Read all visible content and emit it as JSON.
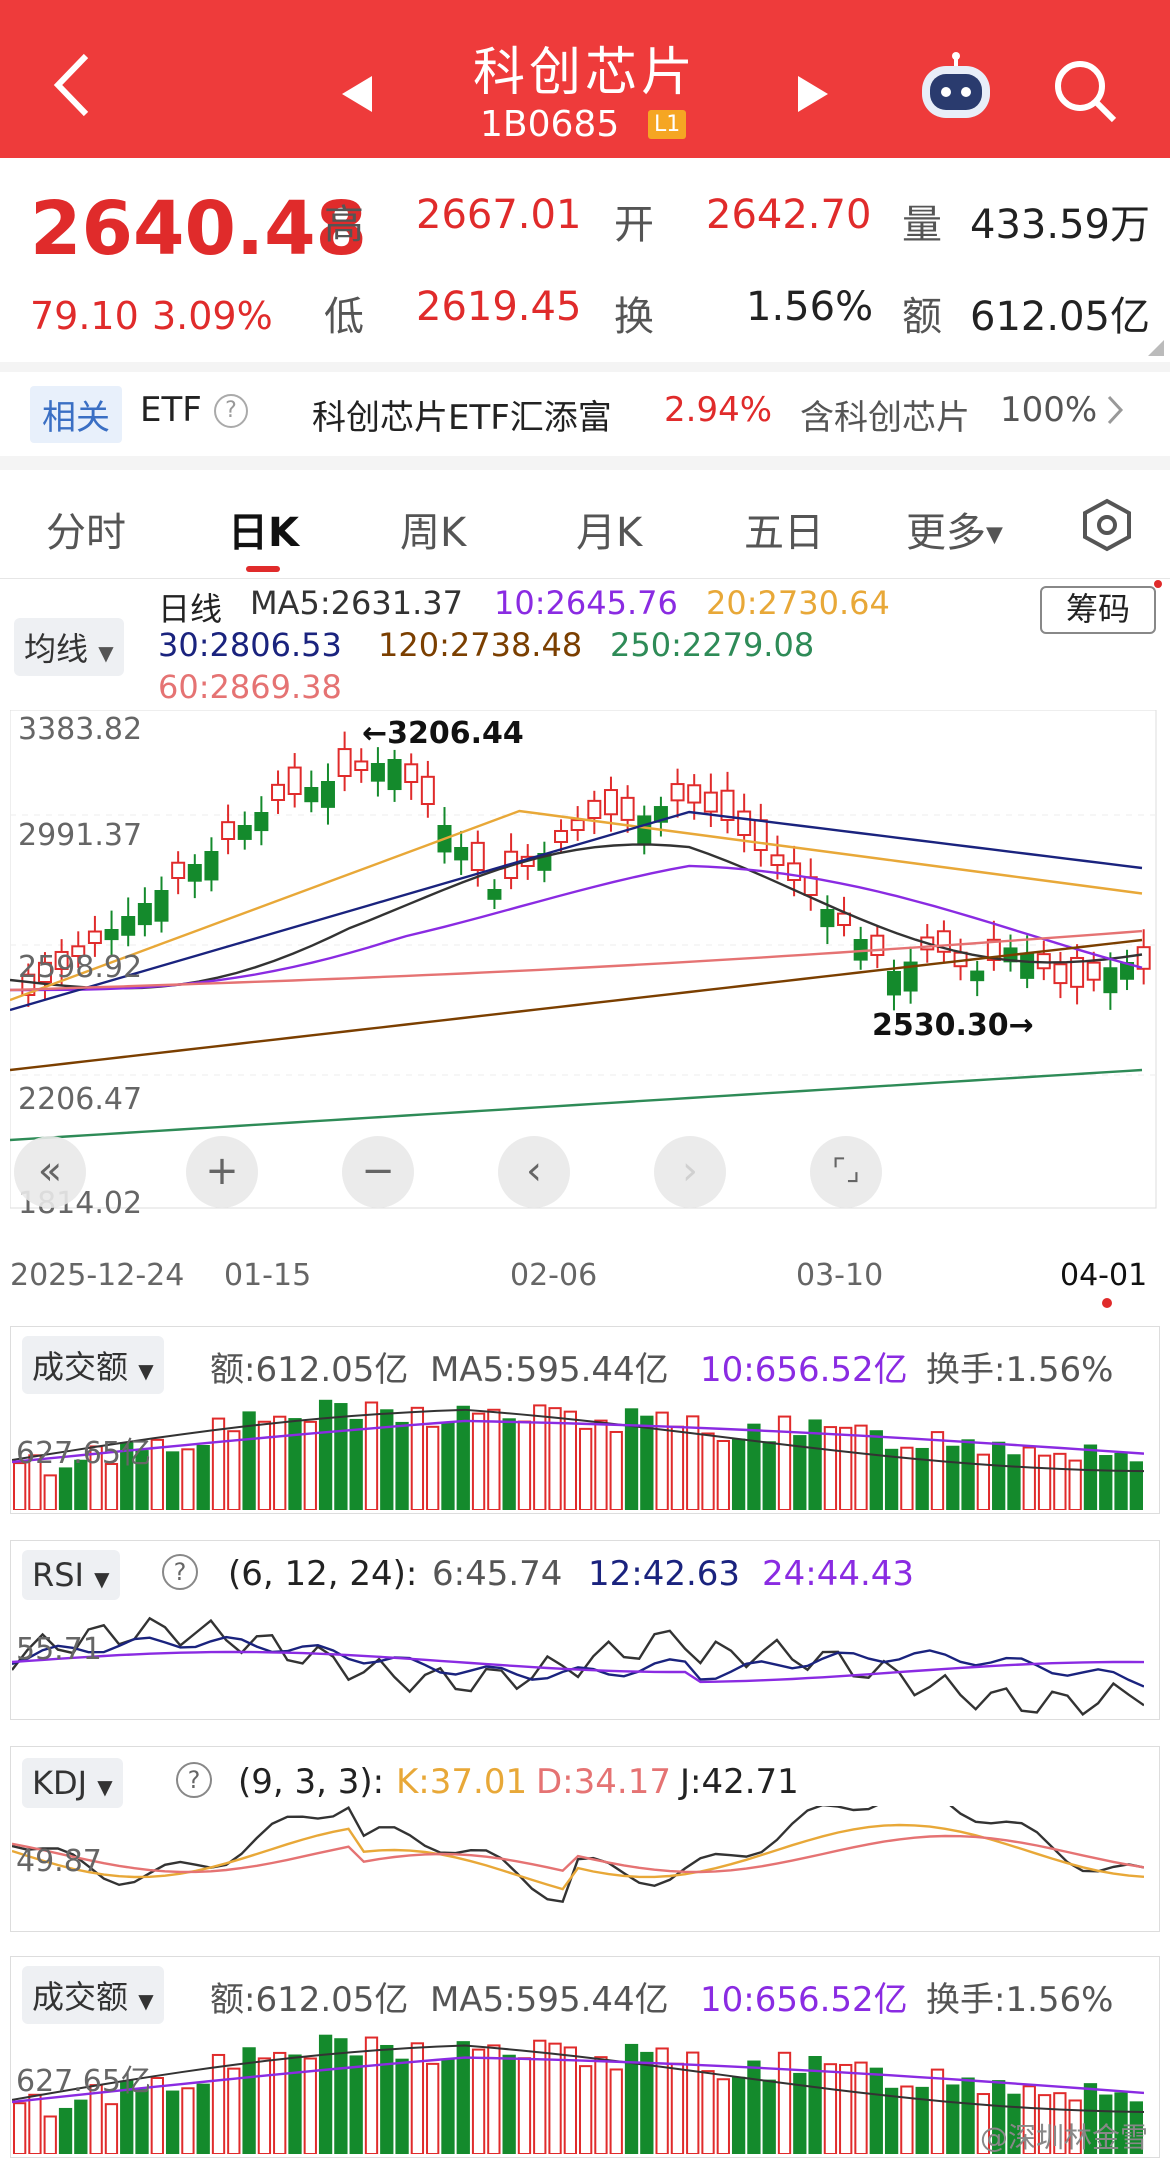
{
  "header": {
    "title": "科创芯片",
    "code": "1B0685",
    "level": "L1"
  },
  "quote": {
    "price": "2640.48",
    "change": "79.10",
    "pct": "3.09%",
    "high_label": "高",
    "high": "2667.01",
    "open_label": "开",
    "open": "2642.70",
    "vol_label": "量",
    "vol": "433.59万",
    "low_label": "低",
    "low": "2619.45",
    "turn_label": "换",
    "turn": "1.56%",
    "amt_label": "额",
    "amt": "612.05亿"
  },
  "etf": {
    "tag": "相关",
    "etf": "ETF",
    "name": "科创芯片ETF汇添富",
    "name_pct": "2.94%",
    "contains": "含科创芯片",
    "contains_pct": "100%"
  },
  "tabs": [
    "分时",
    "日K",
    "周K",
    "月K",
    "五日",
    "更多"
  ],
  "kline": {
    "mode": "均线",
    "label": "日线",
    "ma5": "MA5:2631.37",
    "ma10": "10:2645.76",
    "ma20": "20:2730.64",
    "ma30": "30:2806.53",
    "ma120": "120:2738.48",
    "ma250": "250:2279.08",
    "ma60": "60:2869.38",
    "chip": "筹码",
    "y_labels": [
      "3383.82",
      "2991.37",
      "2598.92",
      "2206.47",
      "1814.02"
    ],
    "x_labels": [
      "2025-12-24",
      "01-15",
      "02-06",
      "03-10",
      "04-01"
    ],
    "high_mark": "←3206.44",
    "low_mark": "2530.30→",
    "colors": {
      "up": "#e02b2b",
      "down": "#148a2c",
      "ma5": "#333333",
      "ma10": "#8a2be2",
      "ma20": "#e8a838",
      "ma30": "#1a237e",
      "ma60": "#e57373",
      "ma120": "#7b3f00",
      "ma250": "#2e8b57"
    }
  },
  "amount_panel": {
    "mode": "成交额",
    "amt": "额:612.05亿",
    "ma5": "MA5:595.44亿",
    "ma10": "10:656.52亿",
    "turnover": "换手:1.56%",
    "ylabel": "627.65亿"
  },
  "rsi": {
    "mode": "RSI",
    "params": "(6, 12, 24):",
    "r6": "6:45.74",
    "r12": "12:42.63",
    "r24": "24:44.43",
    "ylabel": "55.71"
  },
  "kdj": {
    "mode": "KDJ",
    "params": "(9, 3, 3):",
    "k": "K:37.01",
    "d": "D:34.17",
    "j": "J:42.71",
    "ylabel": "49.87"
  },
  "amount_panel2": {
    "mode": "成交额",
    "amt": "额:612.05亿",
    "ma5": "MA5:595.44亿",
    "ma10": "10:656.52亿",
    "turnover": "换手:1.56%",
    "ylabel": "627.65亿"
  },
  "watermark": "@深圳林金雪"
}
